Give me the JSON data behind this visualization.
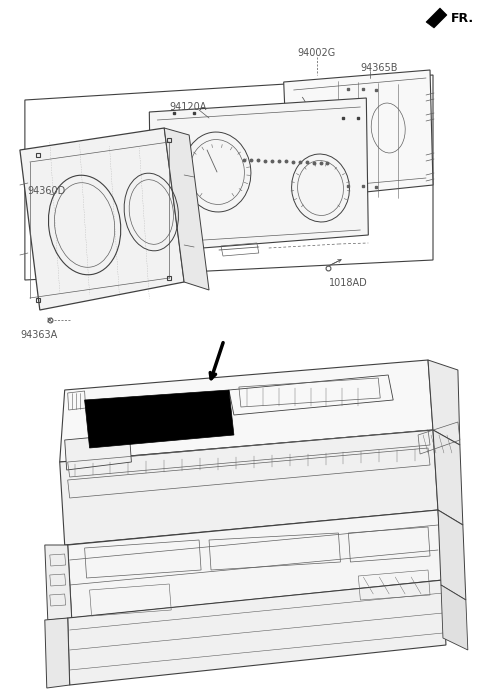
{
  "bg_color": "#ffffff",
  "lc": "#404040",
  "lc_thin": "#606060",
  "lbl": "#555555",
  "black": "#000000",
  "fig_width": 4.8,
  "fig_height": 6.96,
  "dpi": 100,
  "labels": {
    "FR": "FR.",
    "part_main": "94002G",
    "part_365": "94365B",
    "part_120": "94120A",
    "part_360": "94360D",
    "part_363": "94363A",
    "part_1018": "1018AD"
  }
}
